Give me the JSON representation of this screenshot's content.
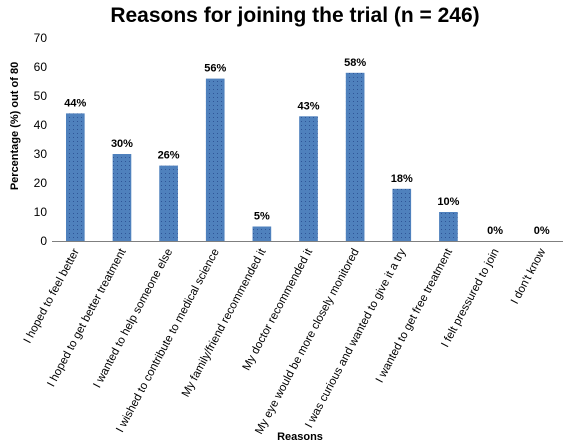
{
  "chart_data": {
    "type": "bar",
    "title": "Reasons for joining the trial (n = 246)",
    "xlabel": "Reasons",
    "ylabel": "Percentage (%) out of 80",
    "ylim": [
      0,
      70
    ],
    "yticks": [
      0,
      10,
      20,
      30,
      40,
      50,
      60,
      70
    ],
    "grid": false,
    "bar_color": "#4f81bd",
    "categories": [
      "I hoped to feel better",
      "I hoped to get better treatment",
      "I wanted to help someone else",
      "I wished to contribute to medical science",
      "My family/friend recommended it",
      "My doctor recommended it",
      "My eye would be more closely monitored",
      "I was curious and wanted to give it a try",
      "I wanted to get free treatment",
      "I felt pressured to join",
      "I don't know"
    ],
    "values": [
      44,
      30,
      26,
      56,
      5,
      43,
      58,
      18,
      10,
      0,
      0
    ],
    "data_labels": [
      "44%",
      "30%",
      "26%",
      "56%",
      "5%",
      "43%",
      "58%",
      "18%",
      "10%",
      "0%",
      "0%"
    ]
  }
}
